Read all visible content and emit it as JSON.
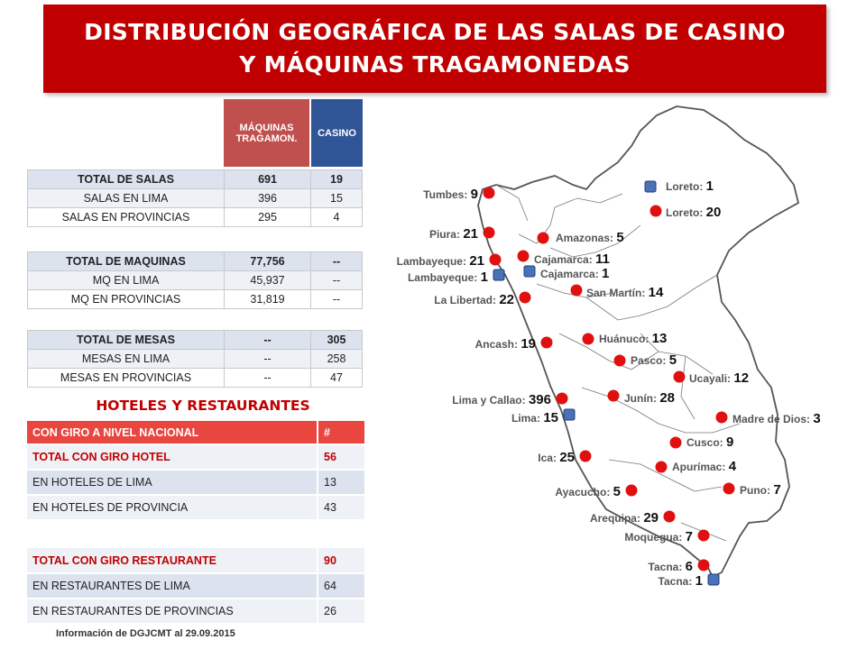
{
  "title": {
    "line1": "DISTRIBUCIÓN GEOGRÁFICA DE LAS SALAS DE CASINO",
    "line2": "Y MÁQUINAS TRAGAMONEDAS"
  },
  "column_headers": {
    "maquinas": "MÁQUINAS TRAGAMON.",
    "casino": "CASINO"
  },
  "tables": {
    "salas": [
      {
        "label": "TOTAL DE SALAS",
        "maq": "691",
        "cas": "19"
      },
      {
        "label": "SALAS EN LIMA",
        "maq": "396",
        "cas": "15"
      },
      {
        "label": "SALAS  EN PROVINCIAS",
        "maq": "295",
        "cas": "4"
      }
    ],
    "maquinas": [
      {
        "label": "TOTAL DE MAQUINAS",
        "maq": "77,756",
        "cas": "--"
      },
      {
        "label": "MQ EN LIMA",
        "maq": "45,937",
        "cas": "--"
      },
      {
        "label": "MQ EN PROVINCIAS",
        "maq": "31,819",
        "cas": "--"
      }
    ],
    "mesas": [
      {
        "label": "TOTAL DE MESAS",
        "maq": "--",
        "cas": "305"
      },
      {
        "label": "MESAS EN LIMA",
        "maq": "--",
        "cas": "258"
      },
      {
        "label": "MESAS EN PROVINCIAS",
        "maq": "--",
        "cas": "47"
      }
    ]
  },
  "hoteles": {
    "title": "HOTELES Y RESTAURANTES",
    "header": {
      "label": "CON GIRO A NIVEL NACIONAL",
      "num": "#"
    },
    "hotel_rows": [
      {
        "label": "TOTAL CON GIRO HOTEL",
        "num": "56"
      },
      {
        "label": "EN HOTELES DE LIMA",
        "num": "13"
      },
      {
        "label": "EN HOTELES DE PROVINCIA",
        "num": "43"
      }
    ],
    "rest_rows": [
      {
        "label": "TOTAL CON GIRO RESTAURANTE",
        "num": "90"
      },
      {
        "label": "EN RESTAURANTES DE LIMA",
        "num": "64"
      },
      {
        "label": "EN RESTAURANTES DE PROVINCIAS",
        "num": "26"
      }
    ]
  },
  "footnote": "Información de DGJCMT al 29.09.2015",
  "map": {
    "colors": {
      "salas": "#e01010",
      "casino": "#4a72b8"
    },
    "markers": [
      {
        "region": "Tumbes:",
        "value": "9",
        "kind": "salas"
      },
      {
        "region": "Loreto:",
        "value": "1",
        "kind": "casino"
      },
      {
        "region": "Loreto:",
        "value": "20",
        "kind": "salas"
      },
      {
        "region": "Piura:",
        "value": "21",
        "kind": "salas"
      },
      {
        "region": "Amazonas:",
        "value": "5",
        "kind": "salas"
      },
      {
        "region": "Lambayeque:",
        "value": "21",
        "kind": "salas"
      },
      {
        "region": "Cajamarca:",
        "value": "11",
        "kind": "salas"
      },
      {
        "region": "Lambayeque:",
        "value": "1",
        "kind": "casino"
      },
      {
        "region": "Cajamarca:",
        "value": "1",
        "kind": "casino"
      },
      {
        "region": "La Libertad:",
        "value": "22",
        "kind": "salas"
      },
      {
        "region": "San Martín:",
        "value": "14",
        "kind": "salas"
      },
      {
        "region": "Ancash:",
        "value": "19",
        "kind": "salas"
      },
      {
        "region": "Huánuco:",
        "value": "13",
        "kind": "salas"
      },
      {
        "region": "Pasco:",
        "value": "5",
        "kind": "salas"
      },
      {
        "region": "Ucayali:",
        "value": "12",
        "kind": "salas"
      },
      {
        "region": "Lima y Callao:",
        "value": "396",
        "kind": "salas"
      },
      {
        "region": "Junín:",
        "value": "28",
        "kind": "salas"
      },
      {
        "region": "Lima:",
        "value": "15",
        "kind": "casino"
      },
      {
        "region": "Madre de Dios:",
        "value": "3",
        "kind": "salas"
      },
      {
        "region": "Cusco:",
        "value": "9",
        "kind": "salas"
      },
      {
        "region": "Ica:",
        "value": "25",
        "kind": "salas"
      },
      {
        "region": "Apurímac:",
        "value": "4",
        "kind": "salas"
      },
      {
        "region": "Ayacucho:",
        "value": "5",
        "kind": "salas"
      },
      {
        "region": "Puno:",
        "value": "7",
        "kind": "salas"
      },
      {
        "region": "Arequipa:",
        "value": "29",
        "kind": "salas"
      },
      {
        "region": "Moquegua:",
        "value": "7",
        "kind": "salas"
      },
      {
        "region": "Tacna:",
        "value": "6",
        "kind": "salas"
      },
      {
        "region": "Tacna:",
        "value": "1",
        "kind": "casino"
      }
    ]
  }
}
